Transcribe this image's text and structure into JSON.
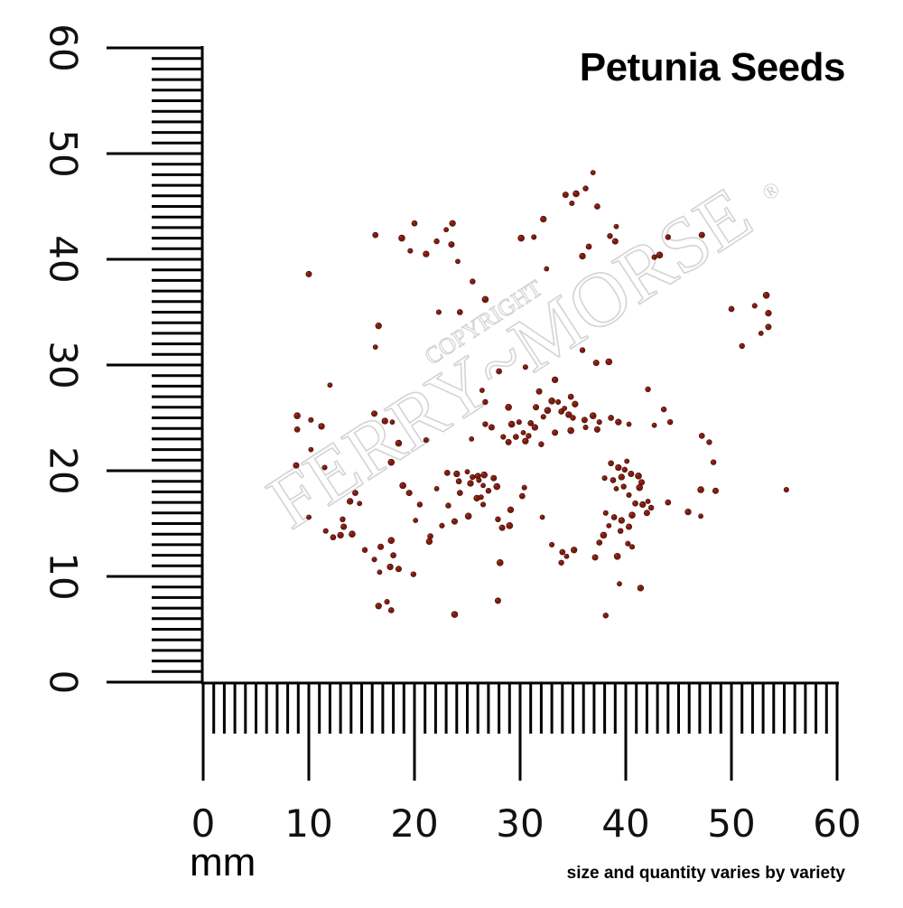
{
  "title": "Petunia Seeds",
  "unit": "mm",
  "caption": "size and quantity varies by variety",
  "watermark": {
    "brand": "FERRY~MORSE",
    "copyright": "COPYRIGHT",
    "registered_mark": "®"
  },
  "rulers": {
    "x_axis": {
      "min": 0,
      "max": 60,
      "major_step": 10,
      "minor_step": 1,
      "labels": [
        "0",
        "10",
        "20",
        "30",
        "40",
        "50",
        "60"
      ]
    },
    "y_axis": {
      "min": 0,
      "max": 60,
      "major_step": 10,
      "minor_step": 1,
      "labels": [
        "0",
        "10",
        "20",
        "30",
        "40",
        "50",
        "60"
      ]
    }
  },
  "seed_color": "#7a1a0e",
  "seeds_mm": [
    [
      36.9,
      48.2
    ],
    [
      36.2,
      46.7
    ],
    [
      34.3,
      46.1
    ],
    [
      35.3,
      46.2
    ],
    [
      34.9,
      45.3
    ],
    [
      37.3,
      45.0
    ],
    [
      32.2,
      43.8
    ],
    [
      39.1,
      43.1
    ],
    [
      38.5,
      42.2
    ],
    [
      39.0,
      41.7
    ],
    [
      30.1,
      42.0
    ],
    [
      31.3,
      42.1
    ],
    [
      20.0,
      43.4
    ],
    [
      23.6,
      43.4
    ],
    [
      23.0,
      42.8
    ],
    [
      22.1,
      41.7
    ],
    [
      23.5,
      41.4
    ],
    [
      18.8,
      42.0
    ],
    [
      19.6,
      40.8
    ],
    [
      16.3,
      42.3
    ],
    [
      21.1,
      40.5
    ],
    [
      24.1,
      39.8
    ],
    [
      44.0,
      42.1
    ],
    [
      47.2,
      42.3
    ],
    [
      43.2,
      40.4
    ],
    [
      42.7,
      40.2
    ],
    [
      36.5,
      41.2
    ],
    [
      35.9,
      40.3
    ],
    [
      32.5,
      39.1
    ],
    [
      25.5,
      37.9
    ],
    [
      10.0,
      38.6
    ],
    [
      53.3,
      36.6
    ],
    [
      52.2,
      35.6
    ],
    [
      50.0,
      35.3
    ],
    [
      53.5,
      34.9
    ],
    [
      52.8,
      33.0
    ],
    [
      51.0,
      31.8
    ],
    [
      53.5,
      33.6
    ],
    [
      26.7,
      36.2
    ],
    [
      22.3,
      35.0
    ],
    [
      24.3,
      35.0
    ],
    [
      16.6,
      33.7
    ],
    [
      16.3,
      31.7
    ],
    [
      35.9,
      31.4
    ],
    [
      37.2,
      30.2
    ],
    [
      38.4,
      30.3
    ],
    [
      30.5,
      29.8
    ],
    [
      28.0,
      29.4
    ],
    [
      33.3,
      28.6
    ],
    [
      12.0,
      28.1
    ],
    [
      42.1,
      27.7
    ],
    [
      31.8,
      27.5
    ],
    [
      33.0,
      26.6
    ],
    [
      33.6,
      26.5
    ],
    [
      34.8,
      27.0
    ],
    [
      35.2,
      26.3
    ],
    [
      26.4,
      27.6
    ],
    [
      26.7,
      26.5
    ],
    [
      31.5,
      26.0
    ],
    [
      32.6,
      25.7
    ],
    [
      32.2,
      25.1
    ],
    [
      33.9,
      25.6
    ],
    [
      34.6,
      25.3
    ],
    [
      34.2,
      25.9
    ],
    [
      35.0,
      25.0
    ],
    [
      36.1,
      24.8
    ],
    [
      36.9,
      25.2
    ],
    [
      37.5,
      24.6
    ],
    [
      38.6,
      25.0
    ],
    [
      39.3,
      24.6
    ],
    [
      40.3,
      24.4
    ],
    [
      43.6,
      25.8
    ],
    [
      16.2,
      25.4
    ],
    [
      8.9,
      25.2
    ],
    [
      10.2,
      24.8
    ],
    [
      8.9,
      23.9
    ],
    [
      17.2,
      24.7
    ],
    [
      17.9,
      24.6
    ],
    [
      26.7,
      24.4
    ],
    [
      27.3,
      24.1
    ],
    [
      29.2,
      24.4
    ],
    [
      29.9,
      24.6
    ],
    [
      31.0,
      24.5
    ],
    [
      31.4,
      24.1
    ],
    [
      30.3,
      23.6
    ],
    [
      30.8,
      23.3
    ],
    [
      33.3,
      23.6
    ],
    [
      34.8,
      23.8
    ],
    [
      28.4,
      23.2
    ],
    [
      29.6,
      23.2
    ],
    [
      30.5,
      22.8
    ],
    [
      25.4,
      23.0
    ],
    [
      32.0,
      22.5
    ],
    [
      28.9,
      22.7
    ],
    [
      18.5,
      22.6
    ],
    [
      21.1,
      22.9
    ],
    [
      47.2,
      23.3
    ],
    [
      11.2,
      24.2
    ],
    [
      10.2,
      22.0
    ],
    [
      47.9,
      22.7
    ],
    [
      8.8,
      20.5
    ],
    [
      17.8,
      20.8
    ],
    [
      11.5,
      20.3
    ],
    [
      23.1,
      19.8
    ],
    [
      24.0,
      19.7
    ],
    [
      25.0,
      19.9
    ],
    [
      25.5,
      19.4
    ],
    [
      26.0,
      19.5
    ],
    [
      26.6,
      19.6
    ],
    [
      26.1,
      19.1
    ],
    [
      24.2,
      19.0
    ],
    [
      25.3,
      18.8
    ],
    [
      26.5,
      18.6
    ],
    [
      27.0,
      18.1
    ],
    [
      27.5,
      19.3
    ],
    [
      27.8,
      18.5
    ],
    [
      26.3,
      17.5
    ],
    [
      24.3,
      17.9
    ],
    [
      25.9,
      17.4
    ],
    [
      22.1,
      18.3
    ],
    [
      23.2,
      16.7
    ],
    [
      23.8,
      15.2
    ],
    [
      25.1,
      15.7
    ],
    [
      22.6,
      14.8
    ],
    [
      21.5,
      13.8
    ],
    [
      21.4,
      13.3
    ],
    [
      20.1,
      15.3
    ],
    [
      20.5,
      16.8
    ],
    [
      19.5,
      17.9
    ],
    [
      18.9,
      18.6
    ],
    [
      30.4,
      18.4
    ],
    [
      30.2,
      17.6
    ],
    [
      29.1,
      16.3
    ],
    [
      32.1,
      15.6
    ],
    [
      27.9,
      15.4
    ],
    [
      28.3,
      14.6
    ],
    [
      29.0,
      14.8
    ],
    [
      26.5,
      16.8
    ],
    [
      38.6,
      20.7
    ],
    [
      39.3,
      20.3
    ],
    [
      40.1,
      20.9
    ],
    [
      39.9,
      20.1
    ],
    [
      40.5,
      19.7
    ],
    [
      41.2,
      19.5
    ],
    [
      38.0,
      19.3
    ],
    [
      38.8,
      19.1
    ],
    [
      39.6,
      19.4
    ],
    [
      39.1,
      18.3
    ],
    [
      39.8,
      18.5
    ],
    [
      41.5,
      18.9
    ],
    [
      41.3,
      18.4
    ],
    [
      40.3,
      17.7
    ],
    [
      40.9,
      16.9
    ],
    [
      41.6,
      16.8
    ],
    [
      42.1,
      17.1
    ],
    [
      42.4,
      16.5
    ],
    [
      42.0,
      16.0
    ],
    [
      40.6,
      15.8
    ],
    [
      38.1,
      16.0
    ],
    [
      38.9,
      15.6
    ],
    [
      39.6,
      15.3
    ],
    [
      38.4,
      14.8
    ],
    [
      39.5,
      14.3
    ],
    [
      40.3,
      14.7
    ],
    [
      37.9,
      13.9
    ],
    [
      40.2,
      13.1
    ],
    [
      34.0,
      12.3
    ],
    [
      35.1,
      12.5
    ],
    [
      34.4,
      11.9
    ],
    [
      33.9,
      11.3
    ],
    [
      37.1,
      11.8
    ],
    [
      39.2,
      11.9
    ],
    [
      40.6,
      12.8
    ],
    [
      44.0,
      17.0
    ],
    [
      45.9,
      16.1
    ],
    [
      47.1,
      15.7
    ],
    [
      48.3,
      20.8
    ],
    [
      48.5,
      18.1
    ],
    [
      47.1,
      18.2
    ],
    [
      55.2,
      18.2
    ],
    [
      14.4,
      17.9
    ],
    [
      13.9,
      17.1
    ],
    [
      14.8,
      16.9
    ],
    [
      13.2,
      15.4
    ],
    [
      13.3,
      14.7
    ],
    [
      14.1,
      14.0
    ],
    [
      11.6,
      14.3
    ],
    [
      12.3,
      13.7
    ],
    [
      13.0,
      13.9
    ],
    [
      10.0,
      15.6
    ],
    [
      15.3,
      12.5
    ],
    [
      16.8,
      12.8
    ],
    [
      17.8,
      13.4
    ],
    [
      16.2,
      11.6
    ],
    [
      18.0,
      12.0
    ],
    [
      17.7,
      10.9
    ],
    [
      16.7,
      10.4
    ],
    [
      19.9,
      10.2
    ],
    [
      18.5,
      10.7
    ],
    [
      28.1,
      11.3
    ],
    [
      33.0,
      13.0
    ],
    [
      37.5,
      13.2
    ],
    [
      41.4,
      8.9
    ],
    [
      39.4,
      9.3
    ],
    [
      38.1,
      6.3
    ],
    [
      27.9,
      7.7
    ],
    [
      23.8,
      6.4
    ],
    [
      17.4,
      7.6
    ],
    [
      17.8,
      6.8
    ],
    [
      16.6,
      7.2
    ],
    [
      42.7,
      24.3
    ],
    [
      44.2,
      24.6
    ],
    [
      37.3,
      23.9
    ],
    [
      28.9,
      26.0
    ],
    [
      36.2,
      24.1
    ]
  ]
}
